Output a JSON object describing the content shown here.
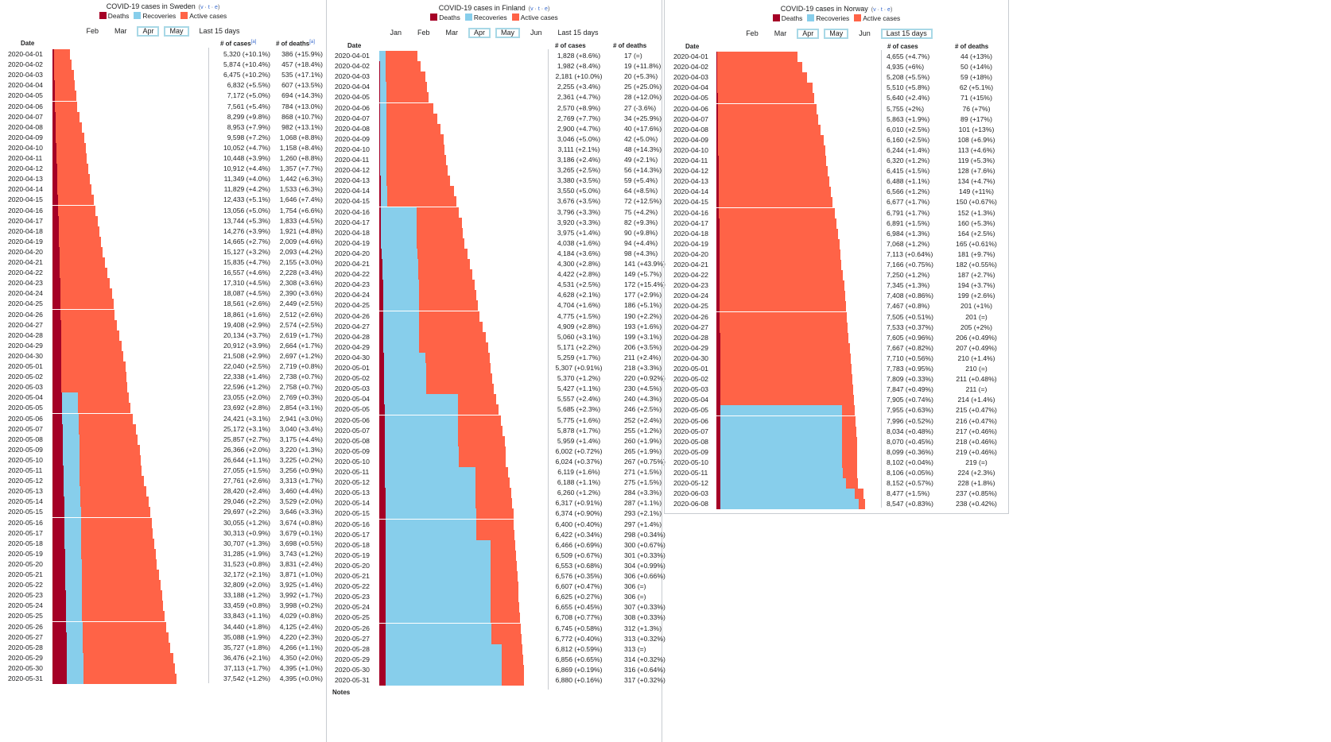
{
  "colors": {
    "deaths": "#A50026",
    "recoveries": "#87CEEB",
    "active": "#FF6347"
  },
  "legend": {
    "deaths": "Deaths",
    "recoveries": "Recoveries",
    "active": "Active cases"
  },
  "vte": [
    "v",
    "t",
    "e"
  ],
  "headers": {
    "date": "Date",
    "cases": "# of cases",
    "deaths": "# of deaths"
  },
  "sweden": {
    "title": "COVID-19 cases in Sweden",
    "nav": [
      {
        "label": "Feb",
        "selected": false
      },
      {
        "label": "Mar",
        "selected": false
      },
      {
        "label": "Apr",
        "selected": true
      },
      {
        "label": "May",
        "selected": true
      },
      {
        "label": "Last 15 days",
        "selected": false
      }
    ],
    "cases_note": "[a]",
    "deaths_note": "[a]",
    "rows": [
      [
        "2020-04-01",
        "5,320 (+10.1%)",
        "386 (+15.9%)"
      ],
      [
        "2020-04-02",
        "5,874 (+10.4%)",
        "457 (+18.4%)"
      ],
      [
        "2020-04-03",
        "6,475 (+10.2%)",
        "535 (+17.1%)"
      ],
      [
        "2020-04-04",
        "6,832 (+5.5%)",
        "607 (+13.5%)"
      ],
      [
        "2020-04-05",
        "7,172 (+5.0%)",
        "694 (+14.3%)"
      ],
      [
        "2020-04-06",
        "7,561 (+5.4%)",
        "784 (+13.0%)"
      ],
      [
        "2020-04-07",
        "8,299 (+9.8%)",
        "868 (+10.7%)"
      ],
      [
        "2020-04-08",
        "8,953 (+7.9%)",
        "982 (+13.1%)"
      ],
      [
        "2020-04-09",
        "9,598 (+7.2%)",
        "1,068 (+8.8%)"
      ],
      [
        "2020-04-10",
        "10,052 (+4.7%)",
        "1,158 (+8.4%)"
      ],
      [
        "2020-04-11",
        "10,448 (+3.9%)",
        "1,260 (+8.8%)"
      ],
      [
        "2020-04-12",
        "10,912 (+4.4%)",
        "1,357 (+7.7%)"
      ],
      [
        "2020-04-13",
        "11,349 (+4.0%)",
        "1,442 (+6.3%)"
      ],
      [
        "2020-04-14",
        "11,829 (+4.2%)",
        "1,533 (+6.3%)"
      ],
      [
        "2020-04-15",
        "12,433 (+5.1%)",
        "1,646 (+7.4%)"
      ],
      [
        "2020-04-16",
        "13,056 (+5.0%)",
        "1,754 (+6.6%)"
      ],
      [
        "2020-04-17",
        "13,744 (+5.3%)",
        "1,833 (+4.5%)"
      ],
      [
        "2020-04-18",
        "14,276 (+3.9%)",
        "1,921 (+4.8%)"
      ],
      [
        "2020-04-19",
        "14,665 (+2.7%)",
        "2,009 (+4.6%)"
      ],
      [
        "2020-04-20",
        "15,127 (+3.2%)",
        "2,093 (+4.2%)"
      ],
      [
        "2020-04-21",
        "15,835 (+4.7%)",
        "2,155 (+3.0%)"
      ],
      [
        "2020-04-22",
        "16,557 (+4.6%)",
        "2,228 (+3.4%)"
      ],
      [
        "2020-04-23",
        "17,310 (+4.5%)",
        "2,308 (+3.6%)"
      ],
      [
        "2020-04-24",
        "18,087 (+4.5%)",
        "2,390 (+3.6%)"
      ],
      [
        "2020-04-25",
        "18,561 (+2.6%)",
        "2,449 (+2.5%)"
      ],
      [
        "2020-04-26",
        "18,861 (+1.6%)",
        "2,512 (+2.6%)"
      ],
      [
        "2020-04-27",
        "19,408 (+2.9%)",
        "2,574 (+2.5%)"
      ],
      [
        "2020-04-28",
        "20,134 (+3.7%)",
        "2,619 (+1.7%)"
      ],
      [
        "2020-04-29",
        "20,912 (+3.9%)",
        "2,664 (+1.7%)"
      ],
      [
        "2020-04-30",
        "21,508 (+2.9%)",
        "2,697 (+1.2%)"
      ],
      [
        "2020-05-01",
        "22,040 (+2.5%)",
        "2,719 (+0.8%)"
      ],
      [
        "2020-05-02",
        "22,338 (+1.4%)",
        "2,738 (+0.7%)"
      ],
      [
        "2020-05-03",
        "22,596 (+1.2%)",
        "2,758 (+0.7%)"
      ],
      [
        "2020-05-04",
        "23,055 (+2.0%)",
        "2,769 (+0.3%)"
      ],
      [
        "2020-05-05",
        "23,692 (+2.8%)",
        "2,854 (+3.1%)"
      ],
      [
        "2020-05-06",
        "24,421 (+3.1%)",
        "2,941 (+3.0%)"
      ],
      [
        "2020-05-07",
        "25,172 (+3.1%)",
        "3,040 (+3.4%)"
      ],
      [
        "2020-05-08",
        "25,857 (+2.7%)",
        "3,175 (+4.4%)"
      ],
      [
        "2020-05-09",
        "26,366 (+2.0%)",
        "3,220 (+1.3%)"
      ],
      [
        "2020-05-10",
        "26,644 (+1.1%)",
        "3,225 (+0.2%)"
      ],
      [
        "2020-05-11",
        "27,055 (+1.5%)",
        "3,256 (+0.9%)"
      ],
      [
        "2020-05-12",
        "27,761 (+2.6%)",
        "3,313 (+1.7%)"
      ],
      [
        "2020-05-13",
        "28,420 (+2.4%)",
        "3,460 (+4.4%)"
      ],
      [
        "2020-05-14",
        "29,046 (+2.2%)",
        "3,529 (+2.0%)"
      ],
      [
        "2020-05-15",
        "29,697 (+2.2%)",
        "3,646 (+3.3%)"
      ],
      [
        "2020-05-16",
        "30,055 (+1.2%)",
        "3,674 (+0.8%)"
      ],
      [
        "2020-05-17",
        "30,313 (+0.9%)",
        "3,679 (+0.1%)"
      ],
      [
        "2020-05-18",
        "30,707 (+1.3%)",
        "3,698 (+0.5%)"
      ],
      [
        "2020-05-19",
        "31,285 (+1.9%)",
        "3,743 (+1.2%)"
      ],
      [
        "2020-05-20",
        "31,523 (+0.8%)",
        "3,831 (+2.4%)"
      ],
      [
        "2020-05-21",
        "32,172 (+2.1%)",
        "3,871 (+1.0%)"
      ],
      [
        "2020-05-22",
        "32,809 (+2.0%)",
        "3,925 (+1.4%)"
      ],
      [
        "2020-05-23",
        "33,188 (+1.2%)",
        "3,992 (+1.7%)"
      ],
      [
        "2020-05-24",
        "33,459 (+0.8%)",
        "3,998 (+0.2%)"
      ],
      [
        "2020-05-25",
        "33,843 (+1.1%)",
        "4,029 (+0.8%)"
      ],
      [
        "2020-05-26",
        "34,440 (+1.8%)",
        "4,125 (+2.4%)"
      ],
      [
        "2020-05-27",
        "35,088 (+1.9%)",
        "4,220 (+2.3%)"
      ],
      [
        "2020-05-28",
        "35,727 (+1.8%)",
        "4,266 (+1.1%)"
      ],
      [
        "2020-05-29",
        "36,476 (+2.1%)",
        "4,350 (+2.0%)"
      ],
      [
        "2020-05-30",
        "37,113 (+1.7%)",
        "4,395 (+1.0%)"
      ],
      [
        "2020-05-31",
        "37,542 (+1.2%)",
        "4,395 (+0.0%)"
      ]
    ],
    "recoveries": [
      0,
      0,
      0,
      0,
      0,
      0,
      0,
      0,
      0,
      0,
      0,
      0,
      0,
      0,
      0,
      0,
      0,
      0,
      0,
      0,
      0,
      0,
      0,
      0,
      0,
      0,
      0,
      0,
      0,
      0,
      0,
      0,
      0,
      4971,
      4971,
      4971,
      4971,
      4971,
      4971,
      4971,
      4971,
      4971,
      4971,
      4971,
      4971,
      4971,
      4971,
      4971,
      4971,
      4971,
      4971,
      4971,
      4971,
      4971,
      4971,
      4971,
      4971,
      4971,
      4971,
      4971,
      4971,
      4971,
      4971
    ]
  },
  "finland": {
    "title": "COVID-19 cases in Finland",
    "nav": [
      {
        "label": "Jan",
        "selected": false
      },
      {
        "label": "Feb",
        "selected": false
      },
      {
        "label": "Mar",
        "selected": false
      },
      {
        "label": "Apr",
        "selected": true
      },
      {
        "label": "May",
        "selected": true
      },
      {
        "label": "Jun",
        "selected": false
      },
      {
        "label": "Last 15 days",
        "selected": false
      }
    ],
    "notes_label": "Notes",
    "rows": [
      [
        "2020-04-01",
        "1,828 (+8.6%)",
        "17 (=)"
      ],
      [
        "2020-04-02",
        "1,982 (+8.4%)",
        "19 (+11.8%)"
      ],
      [
        "2020-04-03",
        "2,181 (+10.0%)",
        "20 (+5.3%)"
      ],
      [
        "2020-04-04",
        "2,255 (+3.4%)",
        "25 (+25.0%)"
      ],
      [
        "2020-04-05",
        "2,361 (+4.7%)",
        "28 (+12.0%)"
      ],
      [
        "2020-04-06",
        "2,570 (+8.9%)",
        "27 (-3.6%)"
      ],
      [
        "2020-04-07",
        "2,769 (+7.7%)",
        "34 (+25.9%)"
      ],
      [
        "2020-04-08",
        "2,900 (+4.7%)",
        "40 (+17.6%)"
      ],
      [
        "2020-04-09",
        "3,046 (+5.0%)",
        "42 (+5.0%)"
      ],
      [
        "2020-04-10",
        "3,111 (+2.1%)",
        "48 (+14.3%)"
      ],
      [
        "2020-04-11",
        "3,186 (+2.4%)",
        "49 (+2.1%)"
      ],
      [
        "2020-04-12",
        "3,265 (+2.5%)",
        "56 (+14.3%)"
      ],
      [
        "2020-04-13",
        "3,380 (+3.5%)",
        "59 (+5.4%)"
      ],
      [
        "2020-04-14",
        "3,550 (+5.0%)",
        "64 (+8.5%)"
      ],
      [
        "2020-04-15",
        "3,676 (+3.5%)",
        "72 (+12.5%)"
      ],
      [
        "2020-04-16",
        "3,796 (+3.3%)",
        "75 (+4.2%)"
      ],
      [
        "2020-04-17",
        "3,920 (+3.3%)",
        "82 (+9.3%)"
      ],
      [
        "2020-04-18",
        "3,975 (+1.4%)",
        "90 (+9.8%)"
      ],
      [
        "2020-04-19",
        "4,038 (+1.6%)",
        "94 (+4.4%)"
      ],
      [
        "2020-04-20",
        "4,184 (+3.6%)",
        "98 (+4.3%)"
      ],
      [
        "2020-04-21",
        "4,300 (+2.8%)",
        "141 (+43.9%)"
      ],
      [
        "2020-04-22",
        "4,422 (+2.8%)",
        "149 (+5.7%)"
      ],
      [
        "2020-04-23",
        "4,531 (+2.5%)",
        "172 (+15.4%)"
      ],
      [
        "2020-04-24",
        "4,628 (+2.1%)",
        "177 (+2.9%)"
      ],
      [
        "2020-04-25",
        "4,704 (+1.6%)",
        "186 (+5.1%)"
      ],
      [
        "2020-04-26",
        "4,775 (+1.5%)",
        "190 (+2.2%)"
      ],
      [
        "2020-04-27",
        "4,909 (+2.8%)",
        "193 (+1.6%)"
      ],
      [
        "2020-04-28",
        "5,060 (+3.1%)",
        "199 (+3.1%)"
      ],
      [
        "2020-04-29",
        "5,171 (+2.2%)",
        "206 (+3.5%)"
      ],
      [
        "2020-04-30",
        "5,259 (+1.7%)",
        "211 (+2.4%)"
      ],
      [
        "2020-05-01",
        "5,307 (+0.91%)",
        "218 (+3.3%)"
      ],
      [
        "2020-05-02",
        "5,370 (+1.2%)",
        "220 (+0.92%)"
      ],
      [
        "2020-05-03",
        "5,427 (+1.1%)",
        "230 (+4.5%)"
      ],
      [
        "2020-05-04",
        "5,557 (+2.4%)",
        "240 (+4.3%)"
      ],
      [
        "2020-05-05",
        "5,685 (+2.3%)",
        "246 (+2.5%)"
      ],
      [
        "2020-05-06",
        "5,775 (+1.6%)",
        "252 (+2.4%)"
      ],
      [
        "2020-05-07",
        "5,878 (+1.7%)",
        "255 (+1.2%)"
      ],
      [
        "2020-05-08",
        "5,959 (+1.4%)",
        "260 (+1.9%)"
      ],
      [
        "2020-05-09",
        "6,002 (+0.72%)",
        "265 (+1.9%)"
      ],
      [
        "2020-05-10",
        "6,024 (+0.37%)",
        "267 (+0.75%)"
      ],
      [
        "2020-05-11",
        "6,119 (+1.6%)",
        "271 (+1.5%)"
      ],
      [
        "2020-05-12",
        "6,188 (+1.1%)",
        "275 (+1.5%)"
      ],
      [
        "2020-05-13",
        "6,260 (+1.2%)",
        "284 (+3.3%)"
      ],
      [
        "2020-05-14",
        "6,317 (+0.91%)",
        "287 (+1.1%)"
      ],
      [
        "2020-05-15",
        "6,374 (+0.90%)",
        "293 (+2.1%)"
      ],
      [
        "2020-05-16",
        "6,400 (+0.40%)",
        "297 (+1.4%)"
      ],
      [
        "2020-05-17",
        "6,422 (+0.34%)",
        "298 (+0.34%)"
      ],
      [
        "2020-05-18",
        "6,466 (+0.69%)",
        "300 (+0.67%)"
      ],
      [
        "2020-05-19",
        "6,509 (+0.67%)",
        "301 (+0.33%)"
      ],
      [
        "2020-05-20",
        "6,553 (+0.68%)",
        "304 (+0.99%)"
      ],
      [
        "2020-05-21",
        "6,576 (+0.35%)",
        "306 (+0.66%)"
      ],
      [
        "2020-05-22",
        "6,607 (+0.47%)",
        "306 (=)"
      ],
      [
        "2020-05-23",
        "6,625 (+0.27%)",
        "306 (=)"
      ],
      [
        "2020-05-24",
        "6,655 (+0.45%)",
        "307 (+0.33%)"
      ],
      [
        "2020-05-25",
        "6,708 (+0.77%)",
        "308 (+0.33%)"
      ],
      [
        "2020-05-26",
        "6,745 (+0.58%)",
        "312 (+1.3%)"
      ],
      [
        "2020-05-27",
        "6,772 (+0.40%)",
        "313 (+0.32%)"
      ],
      [
        "2020-05-28",
        "6,812 (+0.59%)",
        "313 (=)"
      ],
      [
        "2020-05-29",
        "6,856 (+0.65%)",
        "314 (+0.32%)"
      ],
      [
        "2020-05-30",
        "6,869 (+0.19%)",
        "316 (+0.64%)"
      ],
      [
        "2020-05-31",
        "6,880 (+0.16%)",
        "317 (+0.32%)"
      ]
    ],
    "recoveries": [
      300,
      300,
      300,
      300,
      300,
      300,
      300,
      300,
      300,
      300,
      300,
      300,
      300,
      300,
      300,
      1700,
      1700,
      1700,
      1700,
      1700,
      1700,
      1700,
      1700,
      1700,
      1700,
      1700,
      1700,
      1700,
      1700,
      2000,
      2000,
      2000,
      2000,
      3500,
      3500,
      3500,
      3500,
      3500,
      3500,
      3500,
      4300,
      4300,
      4300,
      4300,
      4300,
      4300,
      4300,
      5000,
      5000,
      5000,
      5000,
      5000,
      5000,
      5000,
      5000,
      5000,
      5000,
      5500,
      5500,
      5500,
      5500
    ]
  },
  "norway": {
    "title": "COVID-19 cases in Norway",
    "nav": [
      {
        "label": "Feb",
        "selected": false
      },
      {
        "label": "Mar",
        "selected": false
      },
      {
        "label": "Apr",
        "selected": true
      },
      {
        "label": "May",
        "selected": true
      },
      {
        "label": "Jun",
        "selected": false
      },
      {
        "label": "Last 15 days",
        "selected": true
      }
    ],
    "rows": [
      [
        "2020-04-01",
        "4,655 (+4.7%)",
        "44 (+13%)"
      ],
      [
        "2020-04-02",
        "4,935 (+6%)",
        "50 (+14%)"
      ],
      [
        "2020-04-03",
        "5,208 (+5.5%)",
        "59 (+18%)"
      ],
      [
        "2020-04-04",
        "5,510 (+5.8%)",
        "62 (+5.1%)"
      ],
      [
        "2020-04-05",
        "5,640 (+2.4%)",
        "71 (+15%)"
      ],
      [
        "2020-04-06",
        "5,755 (+2%)",
        "76 (+7%)"
      ],
      [
        "2020-04-07",
        "5,863 (+1.9%)",
        "89 (+17%)"
      ],
      [
        "2020-04-08",
        "6,010 (+2.5%)",
        "101 (+13%)"
      ],
      [
        "2020-04-09",
        "6,160 (+2.5%)",
        "108 (+6.9%)"
      ],
      [
        "2020-04-10",
        "6,244 (+1.4%)",
        "113 (+4.6%)"
      ],
      [
        "2020-04-11",
        "6,320 (+1.2%)",
        "119 (+5.3%)"
      ],
      [
        "2020-04-12",
        "6,415 (+1.5%)",
        "128 (+7.6%)"
      ],
      [
        "2020-04-13",
        "6,488 (+1.1%)",
        "134 (+4.7%)"
      ],
      [
        "2020-04-14",
        "6,566 (+1.2%)",
        "149 (+11%)"
      ],
      [
        "2020-04-15",
        "6,677 (+1.7%)",
        "150 (+0.67%)"
      ],
      [
        "2020-04-16",
        "6,791 (+1.7%)",
        "152 (+1.3%)"
      ],
      [
        "2020-04-17",
        "6,891 (+1.5%)",
        "160 (+5.3%)"
      ],
      [
        "2020-04-18",
        "6,984 (+1.3%)",
        "164 (+2.5%)"
      ],
      [
        "2020-04-19",
        "7,068 (+1.2%)",
        "165 (+0.61%)"
      ],
      [
        "2020-04-20",
        "7,113 (+0.64%)",
        "181 (+9.7%)"
      ],
      [
        "2020-04-21",
        "7,166 (+0.75%)",
        "182 (+0.55%)"
      ],
      [
        "2020-04-22",
        "7,250 (+1.2%)",
        "187 (+2.7%)"
      ],
      [
        "2020-04-23",
        "7,345 (+1.3%)",
        "194 (+3.7%)"
      ],
      [
        "2020-04-24",
        "7,408 (+0.86%)",
        "199 (+2.6%)"
      ],
      [
        "2020-04-25",
        "7,467 (+0.8%)",
        "201 (+1%)"
      ],
      [
        "2020-04-26",
        "7,505 (+0.51%)",
        "201 (=)"
      ],
      [
        "2020-04-27",
        "7,533 (+0.37%)",
        "205 (+2%)"
      ],
      [
        "2020-04-28",
        "7,605 (+0.96%)",
        "206 (+0.49%)"
      ],
      [
        "2020-04-29",
        "7,667 (+0.82%)",
        "207 (+0.49%)"
      ],
      [
        "2020-04-30",
        "7,710 (+0.56%)",
        "210 (+1.4%)"
      ],
      [
        "2020-05-01",
        "7,783 (+0.95%)",
        "210 (=)"
      ],
      [
        "2020-05-02",
        "7,809 (+0.33%)",
        "211 (+0.48%)"
      ],
      [
        "2020-05-03",
        "7,847 (+0.49%)",
        "211 (=)"
      ],
      [
        "2020-05-04",
        "7,905 (+0.74%)",
        "214 (+1.4%)"
      ],
      [
        "2020-05-05",
        "7,955 (+0.63%)",
        "215 (+0.47%)"
      ],
      [
        "2020-05-06",
        "7,996 (+0.52%)",
        "216 (+0.47%)"
      ],
      [
        "2020-05-07",
        "8,034 (+0.48%)",
        "217 (+0.46%)"
      ],
      [
        "2020-05-08",
        "8,070 (+0.45%)",
        "218 (+0.46%)"
      ],
      [
        "2020-05-09",
        "8,099 (+0.36%)",
        "219 (+0.46%)"
      ],
      [
        "2020-05-10",
        "8,102 (+0.04%)",
        "219 (=)"
      ],
      [
        "2020-05-11",
        "8,106 (+0.05%)",
        "224 (+2.3%)"
      ],
      [
        "2020-05-12",
        "8,152 (+0.57%)",
        "228 (+1.8%)"
      ],
      [
        "2020-06-03",
        "8,477 (+1.5%)",
        "237 (+0.85%)"
      ],
      [
        "2020-06-08",
        "8,547 (+0.83%)",
        "238 (+0.42%)"
      ]
    ],
    "recoveries": [
      0,
      0,
      0,
      0,
      0,
      0,
      0,
      0,
      0,
      0,
      0,
      0,
      0,
      0,
      0,
      0,
      0,
      0,
      0,
      0,
      0,
      0,
      0,
      0,
      0,
      0,
      0,
      0,
      0,
      0,
      0,
      0,
      0,
      0,
      7000,
      7000,
      7000,
      7000,
      7000,
      7000,
      7050,
      7200,
      7700,
      7950
    ]
  }
}
